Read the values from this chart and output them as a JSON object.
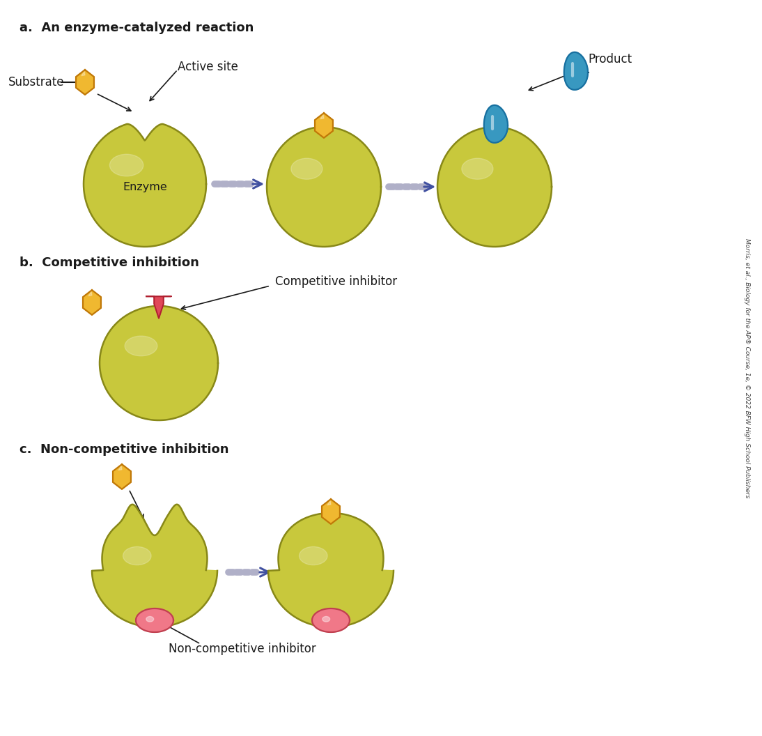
{
  "title_a": "a.  An enzyme-catalyzed reaction",
  "title_b": "b.  Competitive inhibition",
  "title_c": "c.  Non-competitive inhibition",
  "enzyme_color": "#c8c83c",
  "enzyme_highlight": "#d8d870",
  "enzyme_shadow": "#a0a020",
  "enzyme_outline": "#888818",
  "substrate_color": "#f0b830",
  "substrate_outline": "#c07808",
  "product_color": "#3898c0",
  "product_outline": "#1870a0",
  "competitive_inhibitor_color": "#e04858",
  "competitive_inhibitor_outline": "#b02030",
  "noncomp_inhibitor_color": "#f07888",
  "noncomp_inhibitor_outline": "#c04050",
  "arrow_color": "#4050a0",
  "arrow_dash_color": "#b0b0c8",
  "text_color": "#1a1a1a",
  "sidebar_text": "Morris, et al., Biology for the AP® Course, 1e, © 2022 BFW High School Publishers",
  "label_fontsize": 12,
  "title_fontsize": 13
}
